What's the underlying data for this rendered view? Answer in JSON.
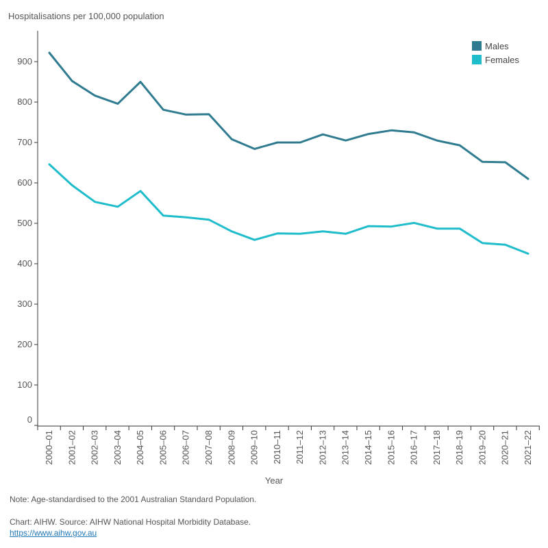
{
  "chart_data": {
    "type": "line",
    "ylabel": "Hospitalisations per 100,000 population",
    "xlabel": "Year",
    "ylim": [
      0,
      950
    ],
    "yticks": [
      0,
      100,
      200,
      300,
      400,
      500,
      600,
      700,
      800,
      900
    ],
    "categories": [
      "2000–01",
      "2001–02",
      "2002–03",
      "2003–04",
      "2004–05",
      "2005–06",
      "2006–07",
      "2007–08",
      "2008–09",
      "2009–10",
      "2010–11",
      "2011–12",
      "2012–13",
      "2013–14",
      "2014–15",
      "2015–16",
      "2016–17",
      "2017–18",
      "2018–19",
      "2019–20",
      "2020–21",
      "2021–22"
    ],
    "series": [
      {
        "name": "Males",
        "color": "#2f7b8f",
        "values": [
          922,
          852,
          816,
          796,
          850,
          781,
          769,
          770,
          708,
          684,
          700,
          700,
          720,
          705,
          721,
          730,
          725,
          705,
          693,
          652,
          651,
          610
        ]
      },
      {
        "name": "Females",
        "color": "#1fbccb",
        "values": [
          646,
          594,
          553,
          541,
          580,
          519,
          515,
          509,
          480,
          459,
          475,
          474,
          480,
          474,
          493,
          492,
          501,
          487,
          487,
          451,
          447,
          425
        ]
      }
    ],
    "legend_position": "top-right",
    "grid": false
  },
  "footer": {
    "note": "Note: Age-standardised to the 2001 Australian Standard Population.",
    "source": "Chart: AIHW. Source: AIHW National Hospital Morbidity Database.",
    "link": "https://www.aihw.gov.au"
  }
}
